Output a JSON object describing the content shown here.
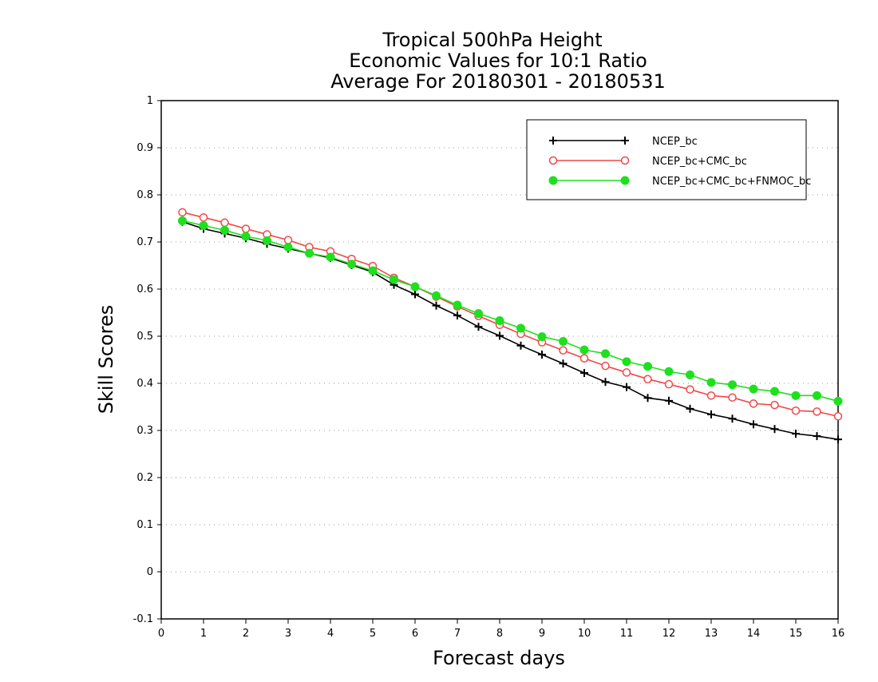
{
  "chart_data": {
    "type": "line",
    "title": [
      "Tropical 500hPa Height",
      "Economic Values for 10:1 Ratio",
      "Average For 20180301 - 20180531"
    ],
    "xlabel": "Forecast days",
    "ylabel": "Skill Scores",
    "xlim": [
      0,
      16
    ],
    "ylim": [
      -0.1,
      1
    ],
    "xticks": [
      0,
      1,
      2,
      3,
      4,
      5,
      6,
      7,
      8,
      9,
      10,
      11,
      12,
      13,
      14,
      15,
      16
    ],
    "yticks": [
      -0.1,
      0,
      0.1,
      0.2,
      0.3,
      0.4,
      0.5,
      0.6,
      0.7,
      0.8,
      0.9,
      1
    ],
    "ytick_labels": [
      "-0.1",
      "0",
      "0.1",
      "0.2",
      "0.3",
      "0.4",
      "0.5",
      "0.6",
      "0.7",
      "0.8",
      "0.9",
      "1"
    ],
    "grid": "horizontal dotted",
    "legend_position": "top-right",
    "x": [
      0.5,
      1,
      1.5,
      2,
      2.5,
      3,
      3.5,
      4,
      4.5,
      5,
      5.5,
      6,
      6.5,
      7,
      7.5,
      8,
      8.5,
      9,
      9.5,
      10,
      10.5,
      11,
      11.5,
      12,
      12.5,
      13,
      13.5,
      14,
      14.5,
      15,
      15.5,
      16
    ],
    "series": [
      {
        "name": "NCEP_bc",
        "color": "#000000",
        "marker": "plus",
        "values": [
          0.743,
          0.728,
          0.718,
          0.708,
          0.696,
          0.686,
          0.676,
          0.666,
          0.651,
          0.636,
          0.609,
          0.589,
          0.565,
          0.544,
          0.52,
          0.501,
          0.48,
          0.461,
          0.442,
          0.422,
          0.403,
          0.392,
          0.369,
          0.363,
          0.346,
          0.334,
          0.325,
          0.313,
          0.303,
          0.293,
          0.288,
          0.281
        ]
      },
      {
        "name": "NCEP_bc+CMC_bc",
        "color": "#f04848",
        "marker": "open-circle",
        "values": [
          0.763,
          0.752,
          0.741,
          0.728,
          0.716,
          0.704,
          0.689,
          0.68,
          0.664,
          0.649,
          0.624,
          0.605,
          0.584,
          0.563,
          0.543,
          0.524,
          0.505,
          0.487,
          0.47,
          0.453,
          0.437,
          0.423,
          0.409,
          0.398,
          0.387,
          0.374,
          0.37,
          0.357,
          0.354,
          0.342,
          0.34,
          0.33
        ]
      },
      {
        "name": "NCEP_bc+CMC_bc+FNMOC_bc",
        "color": "#1ee01e",
        "marker": "filled-circle",
        "values": [
          0.745,
          0.735,
          0.725,
          0.712,
          0.703,
          0.689,
          0.676,
          0.668,
          0.653,
          0.639,
          0.62,
          0.605,
          0.586,
          0.566,
          0.548,
          0.533,
          0.517,
          0.499,
          0.489,
          0.471,
          0.463,
          0.446,
          0.436,
          0.425,
          0.418,
          0.402,
          0.397,
          0.388,
          0.383,
          0.374,
          0.374,
          0.362
        ]
      }
    ]
  }
}
